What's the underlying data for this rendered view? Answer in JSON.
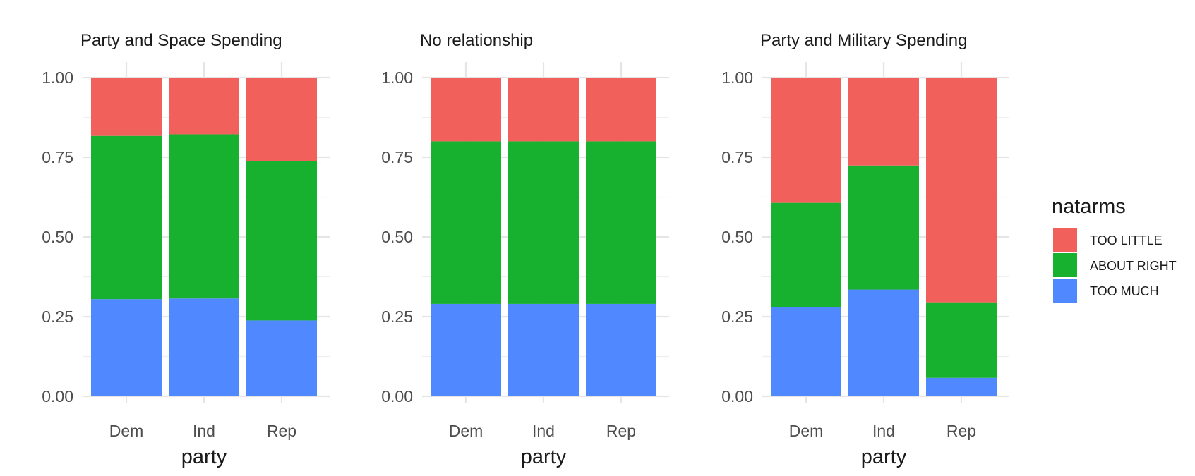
{
  "chart_data": [
    {
      "type": "bar",
      "stacked": true,
      "title": "Party and Space Spending",
      "xlabel": "party",
      "ylabel": "",
      "ylim": [
        0,
        1
      ],
      "yticks": [
        "0.00",
        "0.25",
        "0.50",
        "0.75",
        "1.00"
      ],
      "categories": [
        "Dem",
        "Ind",
        "Rep"
      ],
      "series": [
        {
          "name": "TOO MUCH",
          "values": [
            0.305,
            0.307,
            0.238
          ]
        },
        {
          "name": "ABOUT RIGHT",
          "values": [
            0.512,
            0.515,
            0.499
          ]
        },
        {
          "name": "TOO LITTLE",
          "values": [
            0.183,
            0.178,
            0.263
          ]
        }
      ]
    },
    {
      "type": "bar",
      "stacked": true,
      "title": "No relationship",
      "xlabel": "party",
      "ylabel": "",
      "ylim": [
        0,
        1
      ],
      "yticks": [
        "0.00",
        "0.25",
        "0.50",
        "0.75",
        "1.00"
      ],
      "categories": [
        "Dem",
        "Ind",
        "Rep"
      ],
      "series": [
        {
          "name": "TOO MUCH",
          "values": [
            0.29,
            0.29,
            0.29
          ]
        },
        {
          "name": "ABOUT RIGHT",
          "values": [
            0.51,
            0.51,
            0.51
          ]
        },
        {
          "name": "TOO LITTLE",
          "values": [
            0.2,
            0.2,
            0.2
          ]
        }
      ]
    },
    {
      "type": "bar",
      "stacked": true,
      "title": "Party and Military Spending",
      "xlabel": "party",
      "ylabel": "",
      "ylim": [
        0,
        1
      ],
      "yticks": [
        "0.00",
        "0.25",
        "0.50",
        "0.75",
        "1.00"
      ],
      "categories": [
        "Dem",
        "Ind",
        "Rep"
      ],
      "series": [
        {
          "name": "TOO MUCH",
          "values": [
            0.28,
            0.335,
            0.058
          ]
        },
        {
          "name": "ABOUT RIGHT",
          "values": [
            0.327,
            0.389,
            0.237
          ]
        },
        {
          "name": "TOO LITTLE",
          "values": [
            0.393,
            0.276,
            0.705
          ]
        }
      ]
    }
  ],
  "legend": {
    "title": "natarms",
    "placement": "right",
    "items": [
      {
        "label": "TOO LITTLE",
        "color": "#F2605C"
      },
      {
        "label": "ABOUT RIGHT",
        "color": "#17B02F"
      },
      {
        "label": "TOO MUCH",
        "color": "#5088FF"
      }
    ]
  },
  "colors": {
    "TOO MUCH": "#5088FF",
    "ABOUT RIGHT": "#17B02F",
    "TOO LITTLE": "#F2605C"
  },
  "grid": true
}
